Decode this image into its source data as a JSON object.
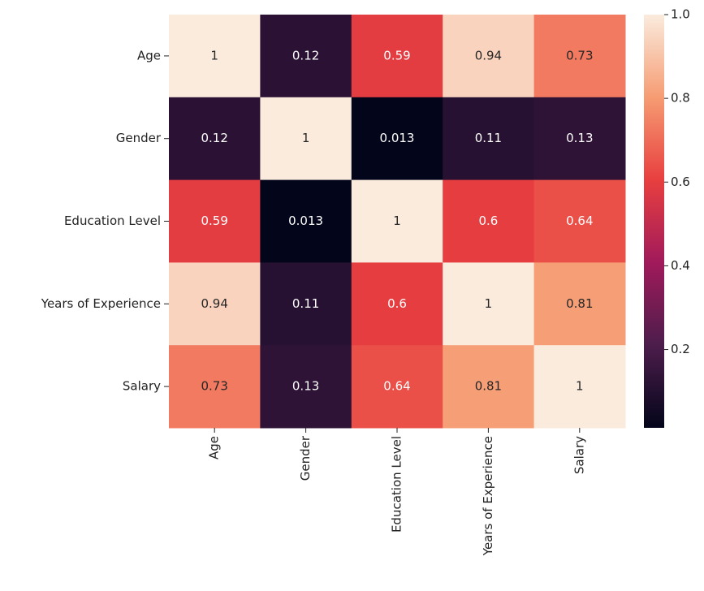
{
  "chart_data": {
    "type": "heatmap",
    "x": [
      "Age",
      "Gender",
      "Education Level",
      "Years of Experience",
      "Salary"
    ],
    "y": [
      "Age",
      "Gender",
      "Education Level",
      "Years of Experience",
      "Salary"
    ],
    "values": [
      [
        1,
        0.12,
        0.59,
        0.94,
        0.73
      ],
      [
        0.12,
        1,
        0.013,
        0.11,
        0.13
      ],
      [
        0.59,
        0.013,
        1,
        0.6,
        0.64
      ],
      [
        0.94,
        0.11,
        0.6,
        1,
        0.81
      ],
      [
        0.73,
        0.13,
        0.64,
        0.81,
        1
      ]
    ],
    "colormap": [
      "#03051a",
      "#4c1d4b",
      "#a11a5b",
      "#e83f3f",
      "#f69c73",
      "#faebdd"
    ],
    "clim": [
      0.013,
      1
    ],
    "cticks": [
      0.2,
      0.4,
      0.6,
      0.8,
      {
        "value": 1,
        "label": "1.0"
      }
    ]
  }
}
